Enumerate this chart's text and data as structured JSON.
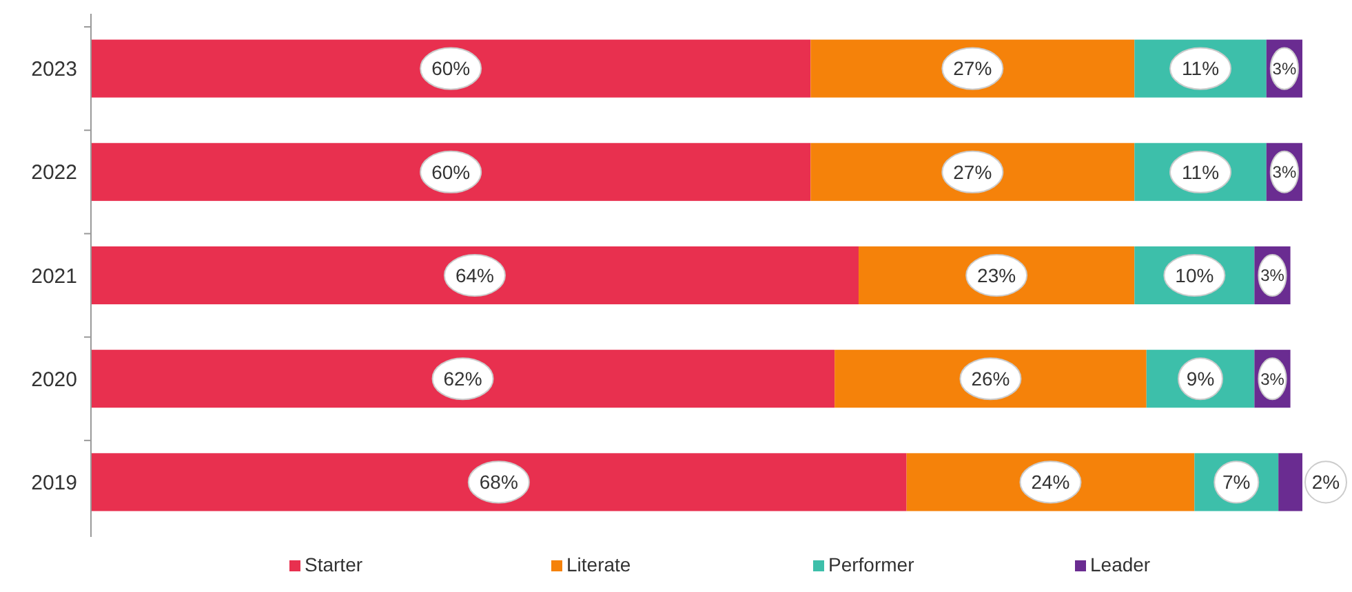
{
  "chart_data": {
    "type": "bar",
    "orientation": "horizontal",
    "stacked": true,
    "legend": "bottom",
    "categories": [
      "2023",
      "2022",
      "2021",
      "2020",
      "2019"
    ],
    "series": [
      {
        "name": "Starter",
        "color": "#e8304f",
        "values": [
          60,
          60,
          64,
          62,
          68
        ],
        "value_labels": [
          "60%",
          "60%",
          "64%",
          "62%",
          "68%"
        ]
      },
      {
        "name": "Literate",
        "color": "#f5820a",
        "values": [
          27,
          27,
          23,
          26,
          24
        ],
        "value_labels": [
          "27%",
          "27%",
          "23%",
          "26%",
          "24%"
        ]
      },
      {
        "name": "Performer",
        "color": "#3dbfaa",
        "values": [
          11,
          11,
          10,
          9,
          7
        ],
        "value_labels": [
          "11%",
          "11%",
          "10%",
          "9%",
          "7%"
        ]
      },
      {
        "name": "Leader",
        "color": "#6a2c91",
        "values": [
          3,
          3,
          3,
          3,
          2
        ],
        "value_labels": [
          "3%",
          "3%",
          "3%",
          "3%",
          "2%"
        ]
      }
    ]
  }
}
